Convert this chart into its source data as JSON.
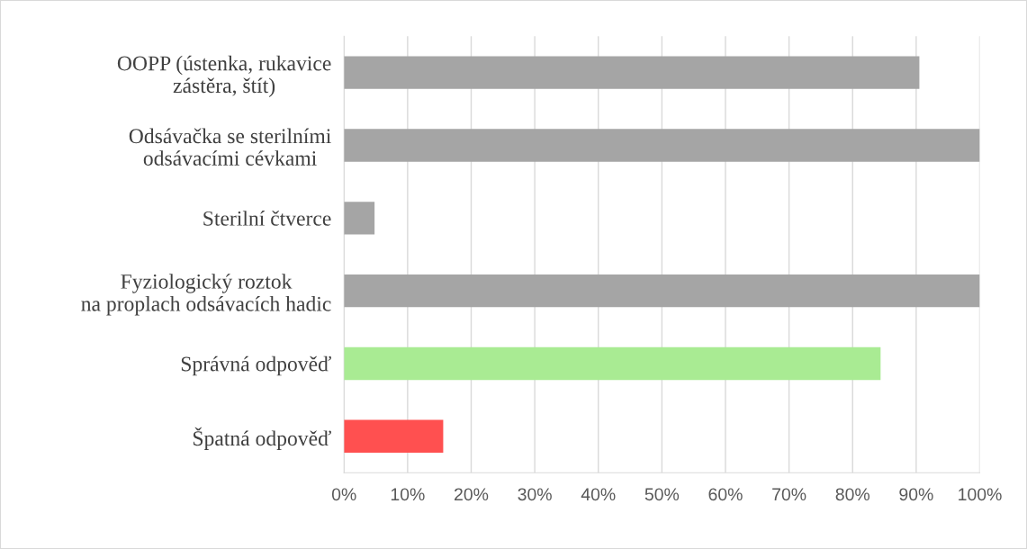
{
  "chart_data": {
    "type": "bar",
    "orientation": "horizontal",
    "categories": [
      "OOPP (ústenka, rukavice\nzástěra, štít)",
      "Odsávačka se sterilními\nodsávacími cévkami",
      "Sterilní čtverce",
      "Fyziologický roztok\nna proplach odsávacích hadic",
      "Správná odpověď",
      "Špatná odpověď"
    ],
    "values": [
      90.5,
      100,
      4.8,
      100,
      84.4,
      15.6
    ],
    "colors": [
      "#a5a5a5",
      "#a5a5a5",
      "#a5a5a5",
      "#a5a5a5",
      "#a9eb93",
      "#ff5050"
    ],
    "xlim": [
      0,
      100
    ],
    "xticks": [
      {
        "value": 0,
        "label": "0%"
      },
      {
        "value": 10,
        "label": "10%"
      },
      {
        "value": 20,
        "label": "20%"
      },
      {
        "value": 30,
        "label": "30%"
      },
      {
        "value": 40,
        "label": "40%"
      },
      {
        "value": 50,
        "label": "50%"
      },
      {
        "value": 60,
        "label": "60%"
      },
      {
        "value": 70,
        "label": "70%"
      },
      {
        "value": 80,
        "label": "80%"
      },
      {
        "value": 90,
        "label": "90%"
      },
      {
        "value": 100,
        "label": "100%"
      }
    ],
    "grid": "x",
    "legend": false
  }
}
